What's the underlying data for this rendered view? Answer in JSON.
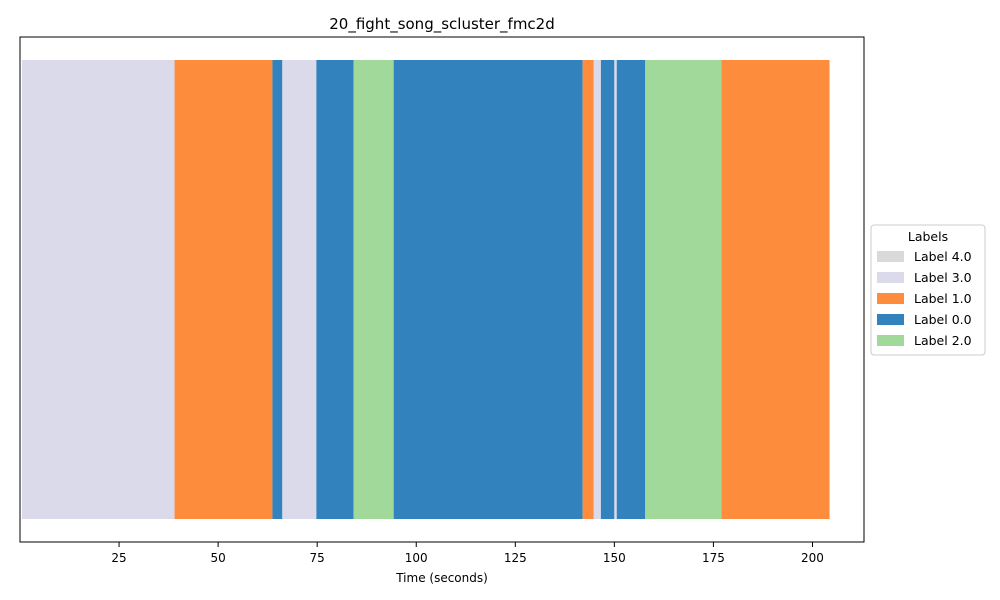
{
  "chart_data": {
    "type": "bar",
    "orientation": "horizontal-timeline",
    "title": "20_fight_song_scluster_fmc2d",
    "xlabel": "Time (seconds)",
    "ylabel": "",
    "xlim": [
      0,
      213
    ],
    "xticks": [
      25,
      50,
      75,
      100,
      125,
      150,
      175,
      200
    ],
    "grid": false,
    "legend": {
      "title": "Labels",
      "placement": "right-center",
      "entries": [
        {
          "label": "Label 4.0",
          "color": "#d9d9d9"
        },
        {
          "label": "Label 3.0",
          "color": "#dadaeb"
        },
        {
          "label": "Label 1.0",
          "color": "#fd8d3c"
        },
        {
          "label": "Label 0.0",
          "color": "#3182bd"
        },
        {
          "label": "Label 2.0",
          "color": "#a1d99b"
        }
      ]
    },
    "segments": [
      {
        "start": 0.5,
        "end": 39.0,
        "label": "Label 3.0"
      },
      {
        "start": 39.0,
        "end": 63.7,
        "label": "Label 1.0"
      },
      {
        "start": 63.7,
        "end": 66.2,
        "label": "Label 0.0"
      },
      {
        "start": 66.2,
        "end": 74.8,
        "label": "Label 3.0"
      },
      {
        "start": 74.8,
        "end": 84.2,
        "label": "Label 0.0"
      },
      {
        "start": 84.2,
        "end": 94.3,
        "label": "Label 2.0"
      },
      {
        "start": 94.3,
        "end": 142.0,
        "label": "Label 0.0"
      },
      {
        "start": 142.0,
        "end": 144.8,
        "label": "Label 1.0"
      },
      {
        "start": 144.8,
        "end": 146.6,
        "label": "Label 3.0"
      },
      {
        "start": 146.6,
        "end": 150.0,
        "label": "Label 0.0"
      },
      {
        "start": 150.0,
        "end": 150.6,
        "label": "Label 3.0"
      },
      {
        "start": 150.6,
        "end": 157.8,
        "label": "Label 0.0"
      },
      {
        "start": 157.8,
        "end": 177.0,
        "label": "Label 2.0"
      },
      {
        "start": 177.0,
        "end": 204.3,
        "label": "Label 1.0"
      }
    ]
  }
}
